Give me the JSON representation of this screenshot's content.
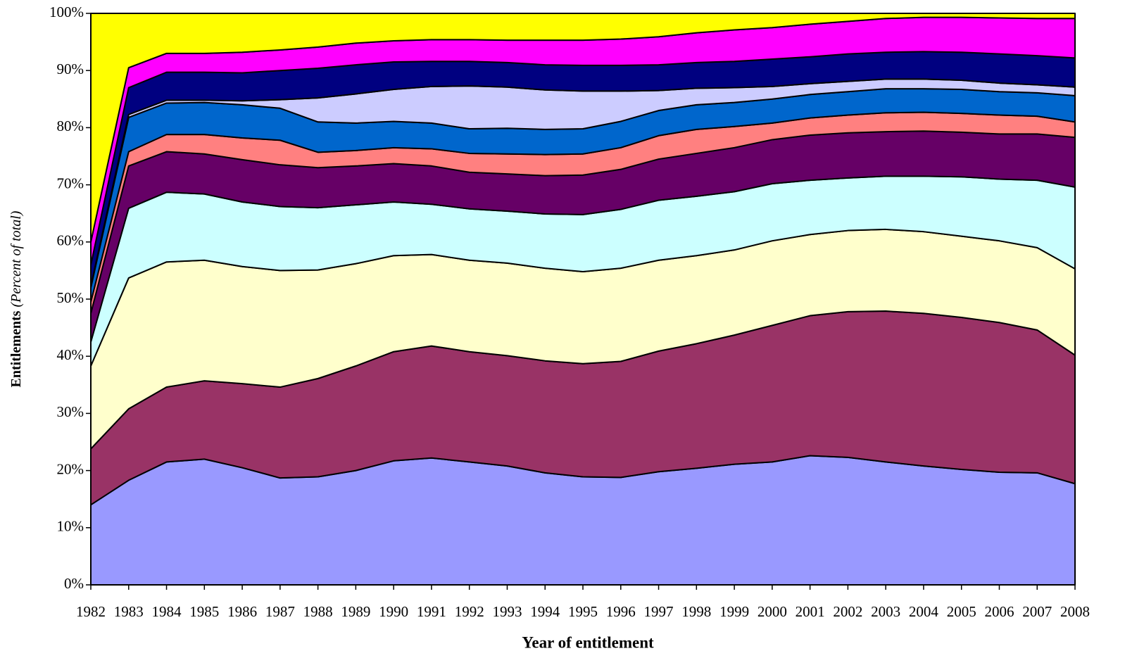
{
  "chart_data": {
    "type": "stacked_area",
    "x_label": "Year of entitlement",
    "y_label": "Entitlements",
    "y_label_note": "(Percent of total)",
    "categories": [
      "1982",
      "1983",
      "1984",
      "1985",
      "1986",
      "1987",
      "1988",
      "1989",
      "1990",
      "1991",
      "1992",
      "1993",
      "1994",
      "1995",
      "1996",
      "1997",
      "1998",
      "1999",
      "2000",
      "2001",
      "2002",
      "2003",
      "2004",
      "2005",
      "2006",
      "2007",
      "2008"
    ],
    "ylim": [
      0,
      100
    ],
    "yticks": [
      {
        "value": 0,
        "label": "0%"
      },
      {
        "value": 10,
        "label": "10%"
      },
      {
        "value": 20,
        "label": "20%"
      },
      {
        "value": 30,
        "label": "30%"
      },
      {
        "value": 40,
        "label": "40%"
      },
      {
        "value": 50,
        "label": "50%"
      },
      {
        "value": 60,
        "label": "60%"
      },
      {
        "value": 70,
        "label": "70%"
      },
      {
        "value": 80,
        "label": "80%"
      },
      {
        "value": 90,
        "label": "90%"
      },
      {
        "value": 100,
        "label": "100%"
      }
    ],
    "series": [
      {
        "color": "#9999ff",
        "values": [
          14,
          18.3,
          21.5,
          22,
          20.5,
          18.7,
          18.9,
          20,
          21.7,
          22.2,
          21.5,
          20.8,
          19.6,
          18.9,
          18.8,
          19.8,
          20.4,
          21.1,
          21.5,
          22.6,
          22.3,
          21.5,
          20.8,
          20.2,
          19.7,
          19.6,
          17.7
        ]
      },
      {
        "color": "#993366",
        "values": [
          9.8,
          12.5,
          13.1,
          13.7,
          14.7,
          15.9,
          17.2,
          18.3,
          19.1,
          19.6,
          19.3,
          19.3,
          19.6,
          19.8,
          20.3,
          21.1,
          21.8,
          22.6,
          23.9,
          24.5,
          25.5,
          26.4,
          26.7,
          26.6,
          26.2,
          25,
          22.5
        ]
      },
      {
        "color": "#ffffcc",
        "values": [
          14.5,
          22.9,
          21.9,
          21.1,
          20.5,
          20.4,
          19,
          17.9,
          16.8,
          16,
          16,
          16.2,
          16.2,
          16.1,
          16.3,
          15.9,
          15.4,
          14.9,
          14.8,
          14.2,
          14.2,
          14.3,
          14.3,
          14.2,
          14.3,
          14.4,
          15.1
        ]
      },
      {
        "color": "#ccffff",
        "values": [
          4.2,
          12.2,
          12.2,
          11.6,
          11.3,
          11.2,
          10.9,
          10.3,
          9.4,
          8.8,
          9,
          9.1,
          9.5,
          10,
          10.3,
          10.5,
          10.4,
          10.2,
          10,
          9.5,
          9.2,
          9.3,
          9.7,
          10.4,
          10.8,
          11.8,
          14.3
        ]
      },
      {
        "color": "#660066",
        "values": [
          5,
          7.4,
          7.1,
          7,
          7.4,
          7.3,
          7,
          6.8,
          6.7,
          6.7,
          6.4,
          6.5,
          6.7,
          6.9,
          7,
          7.2,
          7.5,
          7.7,
          7.7,
          7.9,
          7.9,
          7.8,
          7.9,
          7.8,
          7.9,
          8.1,
          8.7
        ]
      },
      {
        "color": "#ff8080",
        "values": [
          2,
          2.5,
          3,
          3.4,
          3.8,
          4.3,
          2.7,
          2.7,
          2.8,
          3,
          3.3,
          3.5,
          3.7,
          3.7,
          3.8,
          4.1,
          4.2,
          3.7,
          2.9,
          3,
          3.1,
          3.3,
          3.3,
          3.3,
          3.3,
          3.1,
          2.7
        ]
      },
      {
        "color": "#0066cc",
        "values": [
          2.5,
          6,
          5.5,
          5.6,
          5.8,
          5.6,
          5.3,
          4.8,
          4.6,
          4.5,
          4.3,
          4.5,
          4.4,
          4.4,
          4.6,
          4.4,
          4.3,
          4.2,
          4.2,
          4.1,
          4.1,
          4.2,
          4.1,
          4.2,
          4.1,
          4.1,
          4.6
        ]
      },
      {
        "color": "#ccccff",
        "values": [
          0.3,
          0.5,
          0.5,
          0.4,
          0.7,
          1.5,
          4.2,
          5.1,
          5.6,
          6.4,
          7.5,
          7.2,
          6.9,
          6.6,
          5.3,
          3.5,
          2.9,
          2.6,
          2.2,
          1.9,
          1.8,
          1.7,
          1.7,
          1.6,
          1.5,
          1.4,
          1.5
        ]
      },
      {
        "color": "#000080",
        "values": [
          3.7,
          4.7,
          4.9,
          4.9,
          4.9,
          5.1,
          5.2,
          5.1,
          4.8,
          4.4,
          4.3,
          4.3,
          4.4,
          4.5,
          4.5,
          4.5,
          4.5,
          4.6,
          4.8,
          4.7,
          4.8,
          4.7,
          4.8,
          4.9,
          5.1,
          5.1,
          5.1
        ]
      },
      {
        "color": "#ff00ff",
        "values": [
          4,
          3.5,
          3.3,
          3.3,
          3.6,
          3.6,
          3.7,
          3.8,
          3.7,
          3.8,
          3.8,
          3.9,
          4.3,
          4.4,
          4.6,
          4.9,
          5.2,
          5.5,
          5.5,
          5.7,
          5.7,
          5.9,
          6,
          6.1,
          6.3,
          6.5,
          6.9
        ]
      },
      {
        "color": "#ffff00",
        "values": [
          40,
          9.5,
          7,
          7,
          6.8,
          6.4,
          5.9,
          5.2,
          4.8,
          4.6,
          4.6,
          4.7,
          4.7,
          4.7,
          4.5,
          4.1,
          3.4,
          2.9,
          2.5,
          1.9,
          1.4,
          0.9,
          0.7,
          0.7,
          0.8,
          0.9,
          0.9
        ]
      }
    ]
  }
}
